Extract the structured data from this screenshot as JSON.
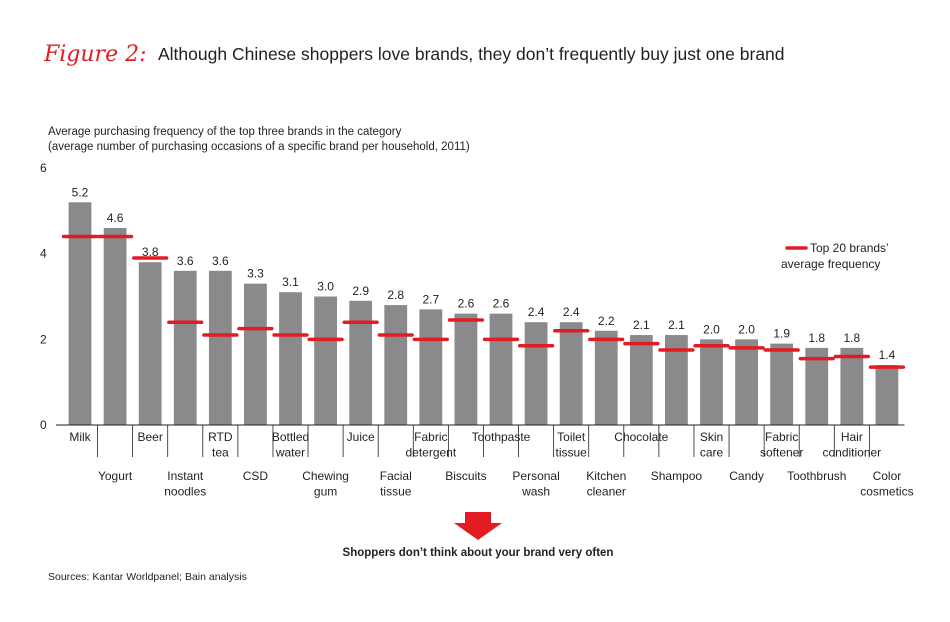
{
  "figure_label": "Figure 2:",
  "title": "Although Chinese shoppers love brands, they don’t frequently buy just one brand",
  "subtitle_line1": "Average purchasing frequency of the top three brands in the category",
  "subtitle_line2": "(average number of purchasing occasions of a specific brand per household, 2011)",
  "callout": "Shoppers don’t think about your brand very often",
  "source": "Sources: Kantar Worldpanel; Bain analysis",
  "colors": {
    "bar": "#8a8a8c",
    "marker": "#e31b23",
    "arrow": "#e31b23",
    "axis": "#231f20"
  },
  "chart_data": {
    "type": "bar",
    "ylim": [
      0,
      6
    ],
    "yticks": [
      0,
      2,
      4,
      6
    ],
    "categories": [
      [
        "Milk"
      ],
      [
        "Yogurt"
      ],
      [
        "Beer"
      ],
      [
        "Instant",
        "noodles"
      ],
      [
        "RTD",
        "tea"
      ],
      [
        "CSD"
      ],
      [
        "Bottled",
        "water"
      ],
      [
        "Chewing",
        "gum"
      ],
      [
        "Juice"
      ],
      [
        "Facial",
        "tissue"
      ],
      [
        "Fabric",
        "detergent"
      ],
      [
        "Biscuits"
      ],
      [
        "Toothpaste"
      ],
      [
        "Personal",
        "wash"
      ],
      [
        "Toilet",
        "tissue"
      ],
      [
        "Kitchen",
        "cleaner"
      ],
      [
        "Chocolate"
      ],
      [
        "Shampoo"
      ],
      [
        "Skin",
        "care"
      ],
      [
        "Candy"
      ],
      [
        "Fabric",
        "softener"
      ],
      [
        "Toothbrush"
      ],
      [
        "Hair",
        "conditioner"
      ],
      [
        "Color",
        "cosmetics"
      ]
    ],
    "series": [
      {
        "values": [
          5.2,
          4.6,
          3.8,
          3.6,
          3.6,
          3.3,
          3.1,
          3.0,
          2.9,
          2.8,
          2.7,
          2.6,
          2.6,
          2.4,
          2.4,
          2.2,
          2.1,
          2.1,
          2.0,
          2.0,
          1.9,
          1.8,
          1.8,
          1.4
        ],
        "value_labels": [
          "5.2",
          "4.6",
          "3.8",
          "3.6",
          "3.6",
          "3.3",
          "3.1",
          "3.0",
          "2.9",
          "2.8",
          "2.7",
          "2.6",
          "2.6",
          "2.4",
          "2.4",
          "2.2",
          "2.1",
          "2.1",
          "2.0",
          "2.0",
          "1.9",
          "1.8",
          "1.8",
          "1.4"
        ]
      },
      {
        "name": "Top 20 brands’ average frequency",
        "name_lines": [
          "Top 20 brands’",
          "average frequency"
        ],
        "values": [
          4.4,
          4.4,
          3.9,
          2.4,
          2.1,
          2.25,
          2.1,
          2.0,
          2.4,
          2.1,
          2.0,
          2.45,
          2.0,
          1.85,
          2.2,
          2.0,
          1.9,
          1.75,
          1.85,
          1.8,
          1.75,
          1.55,
          1.6,
          1.35
        ]
      }
    ],
    "grid": false,
    "legend_position": "top-right"
  }
}
